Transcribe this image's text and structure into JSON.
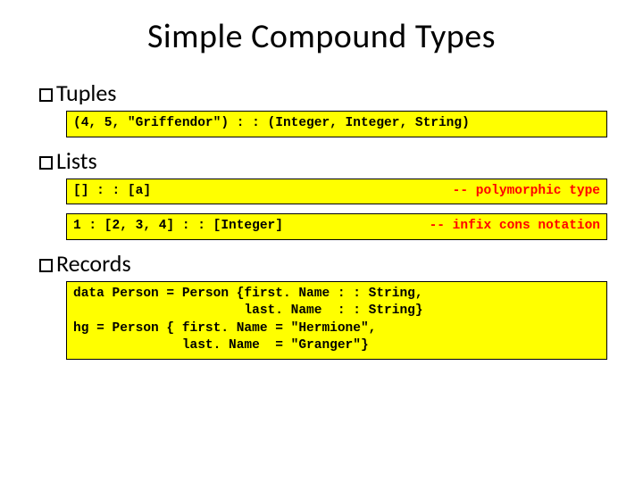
{
  "title": "Simple Compound Types",
  "sections": {
    "tuples": {
      "heading": "Tuples",
      "code1": "(4, 5, \"Griffendor\") : : (Integer, Integer, String)"
    },
    "lists": {
      "heading": "Lists",
      "code1_left": "[] : : [a]",
      "code1_comment": "-- polymorphic type",
      "code2_left": "1 : [2, 3, 4] : : [Integer]",
      "code2_comment": "-- infix cons notation"
    },
    "records": {
      "heading": "Records",
      "code1": "data Person = Person {first. Name : : String,\n                      last. Name  : : String}\nhg = Person { first. Name = \"Hermione\",\n              last. Name  = \"Granger\"}"
    }
  },
  "colors": {
    "code_bg": "#ffff00",
    "code_border": "#000000",
    "comment": "#ff0000",
    "text": "#000000",
    "background": "#ffffff"
  }
}
